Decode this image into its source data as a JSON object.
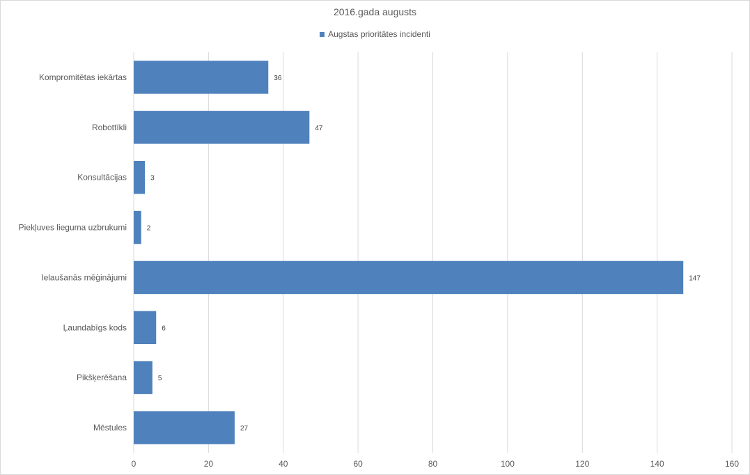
{
  "chart_data": {
    "type": "bar",
    "orientation": "horizontal",
    "title": "2016.gada augusts",
    "categories": [
      "Kompromitētas iekārtas",
      "Robottīkli",
      "Konsultācijas",
      "Piekļuves lieguma uzbrukumi",
      "Ielaušanās mēģinājumi",
      "Ļaundabīgs kods",
      "Pikšķerēšana",
      "Mēstules"
    ],
    "series": [
      {
        "name": "Augstas prioritātes incidenti",
        "values": [
          36,
          47,
          3,
          2,
          147,
          6,
          5,
          27
        ],
        "color": "#4f81bd"
      }
    ],
    "xlim": [
      0,
      160
    ],
    "xticks": [
      0,
      20,
      40,
      60,
      80,
      100,
      120,
      140,
      160
    ],
    "grid": true,
    "legend_position": "top",
    "data_labels": true,
    "gridline_color": "#d9d9d9"
  }
}
